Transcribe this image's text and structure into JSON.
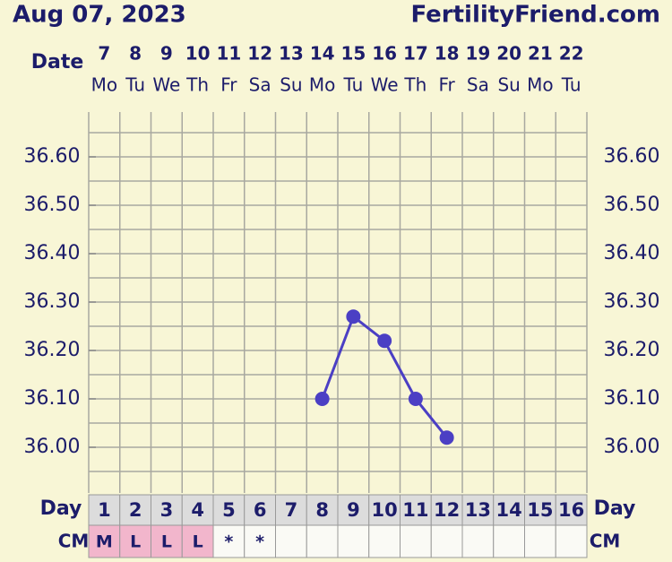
{
  "header": {
    "date": "Aug 07, 2023",
    "site": "FertilityFriend.com"
  },
  "chart_data": {
    "type": "line",
    "date_label": "Date",
    "day_label": "Day",
    "cm_label": "CM",
    "categories": [
      "7",
      "8",
      "9",
      "10",
      "11",
      "12",
      "13",
      "14",
      "15",
      "16",
      "17",
      "18",
      "19",
      "20",
      "21",
      "22"
    ],
    "weekdays": [
      "Mo",
      "Tu",
      "We",
      "Th",
      "Fr",
      "Sa",
      "Su",
      "Mo",
      "Tu",
      "We",
      "Th",
      "Fr",
      "Sa",
      "Su",
      "Mo",
      "Tu"
    ],
    "cycle_days": [
      "1",
      "2",
      "3",
      "4",
      "5",
      "6",
      "7",
      "8",
      "9",
      "10",
      "11",
      "12",
      "13",
      "14",
      "15",
      "16"
    ],
    "cm": [
      "M",
      "L",
      "L",
      "L",
      "*",
      "*",
      null,
      null,
      null,
      null,
      null,
      null,
      null,
      null,
      null,
      null
    ],
    "cm_highlight": [
      "M",
      "L"
    ],
    "series": [
      {
        "color": "#4b3fc4",
        "values": [
          null,
          null,
          null,
          null,
          null,
          null,
          null,
          36.1,
          36.27,
          36.22,
          36.1,
          36.02,
          null,
          null,
          null,
          null
        ]
      }
    ],
    "ylim": [
      35.9,
      36.7
    ],
    "yticks": [
      {
        "value": 36.0,
        "label": "36.00"
      },
      {
        "value": 36.1,
        "label": "36.10"
      },
      {
        "value": 36.2,
        "label": "36.20"
      },
      {
        "value": 36.3,
        "label": "36.30"
      },
      {
        "value": 36.4,
        "label": "36.40"
      },
      {
        "value": 36.5,
        "label": "36.50"
      },
      {
        "value": 36.6,
        "label": "36.60"
      }
    ],
    "grid_yticks": [
      35.95,
      36.0,
      36.05,
      36.1,
      36.15,
      36.2,
      36.25,
      36.3,
      36.35,
      36.4,
      36.45,
      36.5,
      36.55,
      36.6,
      36.65
    ],
    "grid": true
  }
}
